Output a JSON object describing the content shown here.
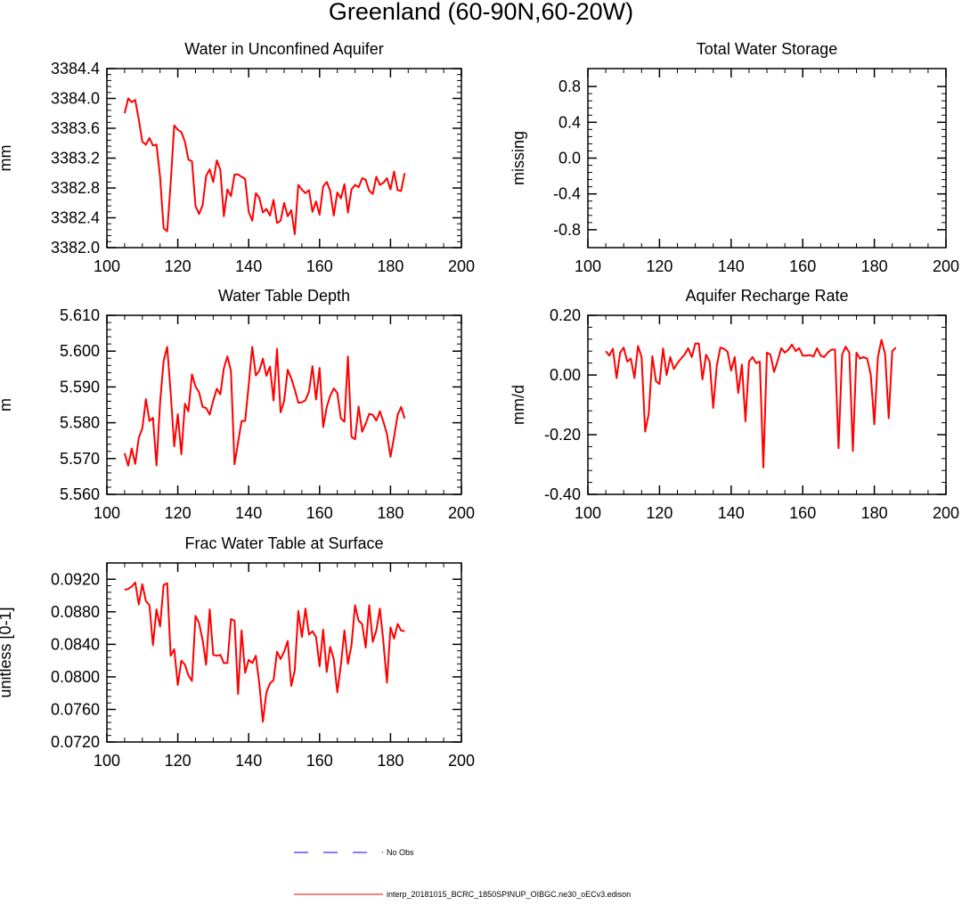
{
  "title": "Greenland (60-90N,60-20W)",
  "legend": {
    "entries": [
      {
        "label": "No Obs",
        "color": "#0000ff",
        "style": "dashed"
      },
      {
        "label": "interp_20181015_BCRC_1850SPINUP_OIBGC.ne30_oECv3.edison",
        "color": "#ff0000",
        "style": "solid"
      }
    ]
  },
  "chart_data": [
    {
      "type": "line",
      "title": "Water in Unconfined Aquifer",
      "xlabel": "",
      "ylabel": "mm",
      "xlim": [
        100,
        200
      ],
      "ylim": [
        3382.0,
        3384.4
      ],
      "xticks": [
        100,
        120,
        140,
        160,
        180,
        200
      ],
      "yticks": [
        3382.0,
        3382.4,
        3382.8,
        3383.2,
        3383.6,
        3384.0,
        3384.4
      ],
      "ytick_labels": [
        "3382.0",
        "3382.4",
        "3382.8",
        "3383.2",
        "3383.6",
        "3384.0",
        "3384.4"
      ],
      "series": [
        {
          "name": "interp_20181015_BCRC_1850SPINUP_OIBGC.ne30_oECv3.edison",
          "color": "#ff0000",
          "x_start": 105,
          "x_step": 1,
          "values": [
            3383.8,
            3384.0,
            3383.95,
            3383.98,
            3383.72,
            3383.42,
            3383.38,
            3383.47,
            3383.37,
            3383.38,
            3382.95,
            3382.26,
            3382.22,
            3382.86,
            3383.64,
            3383.58,
            3383.55,
            3383.42,
            3383.18,
            3383.16,
            3382.56,
            3382.45,
            3382.57,
            3382.96,
            3383.05,
            3382.88,
            3383.17,
            3383.04,
            3382.42,
            3382.78,
            3382.69,
            3382.98,
            3382.98,
            3382.95,
            3382.92,
            3382.48,
            3382.36,
            3382.73,
            3382.67,
            3382.47,
            3382.52,
            3382.43,
            3382.64,
            3382.33,
            3382.36,
            3382.6,
            3382.42,
            3382.5,
            3382.18,
            3382.84,
            3382.78,
            3382.73,
            3382.77,
            3382.48,
            3382.62,
            3382.44,
            3382.82,
            3382.88,
            3382.76,
            3382.43,
            3382.74,
            3382.66,
            3382.85,
            3382.47,
            3382.78,
            3382.84,
            3382.81,
            3382.93,
            3382.91,
            3382.76,
            3382.72,
            3382.95,
            3382.84,
            3382.87,
            3382.93,
            3382.78,
            3383.02,
            3382.77,
            3382.76,
            3383.0
          ]
        }
      ]
    },
    {
      "type": "line",
      "title": "Total Water Storage",
      "xlabel": "",
      "ylabel": "missing",
      "xlim": [
        100,
        200
      ],
      "ylim": [
        -1.0,
        1.0
      ],
      "xticks": [
        100,
        120,
        140,
        160,
        180,
        200
      ],
      "yticks": [
        -0.8,
        -0.4,
        0.0,
        0.4,
        0.8
      ],
      "ytick_labels": [
        "-0.8",
        "-0.4",
        "0.0",
        "0.4",
        "0.8"
      ],
      "series": []
    },
    {
      "type": "line",
      "title": "Water Table Depth",
      "xlabel": "",
      "ylabel": "m",
      "xlim": [
        100,
        200
      ],
      "ylim": [
        5.56,
        5.61
      ],
      "xticks": [
        100,
        120,
        140,
        160,
        180,
        200
      ],
      "yticks": [
        5.56,
        5.57,
        5.58,
        5.59,
        5.6,
        5.61
      ],
      "ytick_labels": [
        "5.560",
        "5.570",
        "5.580",
        "5.590",
        "5.600",
        "5.610"
      ],
      "series": [
        {
          "name": "interp_20181015_BCRC_1850SPINUP_OIBGC.ne30_oECv3.edison",
          "color": "#ff0000",
          "x_start": 105,
          "x_step": 1,
          "values": [
            5.5715,
            5.568,
            5.5728,
            5.5685,
            5.5758,
            5.5784,
            5.5866,
            5.5805,
            5.5814,
            5.5681,
            5.5855,
            5.5973,
            5.6012,
            5.5884,
            5.5734,
            5.5824,
            5.5712,
            5.5853,
            5.5832,
            5.5935,
            5.5901,
            5.5885,
            5.5844,
            5.5841,
            5.5823,
            5.5862,
            5.5895,
            5.5879,
            5.5952,
            5.5985,
            5.5944,
            5.5684,
            5.5745,
            5.5805,
            5.5805,
            5.5905,
            5.6012,
            5.5932,
            5.5945,
            5.5979,
            5.5931,
            5.5957,
            5.5862,
            5.6006,
            5.5829,
            5.5861,
            5.5948,
            5.5924,
            5.5893,
            5.5856,
            5.5857,
            5.5863,
            5.5887,
            5.5958,
            5.5865,
            5.5953,
            5.5788,
            5.5844,
            5.5875,
            5.5896,
            5.5883,
            5.5812,
            5.5803,
            5.5985,
            5.5761,
            5.5754,
            5.5845,
            5.5775,
            5.5797,
            5.5825,
            5.5822,
            5.5806,
            5.5832,
            5.5803,
            5.5769,
            5.5705,
            5.576,
            5.5822,
            5.5844,
            5.5812
          ]
        }
      ]
    },
    {
      "type": "line",
      "title": "Aquifer Recharge Rate",
      "xlabel": "",
      "ylabel": "mm/d",
      "xlim": [
        100,
        200
      ],
      "ylim": [
        -0.4,
        0.2
      ],
      "xticks": [
        100,
        120,
        140,
        160,
        180,
        200
      ],
      "yticks": [
        -0.4,
        -0.2,
        0.0,
        0.2
      ],
      "ytick_labels": [
        "-0.40",
        "-0.20",
        "0.00",
        "0.20"
      ],
      "series": [
        {
          "name": "interp_20181015_BCRC_1850SPINUP_OIBGC.ne30_oECv3.edison",
          "color": "#ff0000",
          "x_start": 105,
          "x_step": 1,
          "values": [
            0.08,
            0.065,
            0.088,
            -0.01,
            0.075,
            0.092,
            0.045,
            0.055,
            -0.01,
            0.097,
            0.06,
            -0.19,
            -0.13,
            0.063,
            -0.02,
            -0.03,
            0.089,
            0.0,
            0.06,
            0.02,
            0.04,
            0.055,
            0.068,
            0.09,
            0.06,
            0.105,
            0.105,
            -0.015,
            0.068,
            0.045,
            -0.11,
            0.03,
            0.092,
            0.088,
            0.078,
            0.015,
            0.06,
            -0.06,
            0.035,
            -0.155,
            0.045,
            0.06,
            0.04,
            0.045,
            -0.31,
            0.075,
            0.068,
            0.01,
            0.048,
            0.09,
            0.075,
            0.085,
            0.102,
            0.08,
            0.09,
            0.065,
            0.065,
            0.067,
            0.062,
            0.09,
            0.065,
            0.06,
            0.075,
            0.085,
            0.085,
            -0.245,
            0.068,
            0.095,
            0.075,
            -0.255,
            0.075,
            0.055,
            0.06,
            0.055,
            0.0,
            -0.165,
            0.06,
            0.118,
            0.07,
            -0.145,
            0.08,
            0.092
          ]
        }
      ]
    },
    {
      "type": "line",
      "title": "Frac Water Table at Surface",
      "xlabel": "",
      "ylabel": "unitless [0-1]",
      "xlim": [
        100,
        200
      ],
      "ylim": [
        0.072,
        0.094
      ],
      "xticks": [
        100,
        120,
        140,
        160,
        180,
        200
      ],
      "yticks": [
        0.072,
        0.076,
        0.08,
        0.084,
        0.088,
        0.092
      ],
      "ytick_labels": [
        "0.0720",
        "0.0760",
        "0.0800",
        "0.0840",
        "0.0880",
        "0.0920"
      ],
      "series": [
        {
          "name": "interp_20181015_BCRC_1850SPINUP_OIBGC.ne30_oECv3.edison",
          "color": "#ff0000",
          "x_start": 105,
          "x_step": 1,
          "values": [
            0.0907,
            0.0908,
            0.0911,
            0.0916,
            0.0889,
            0.0914,
            0.0893,
            0.0888,
            0.0839,
            0.0883,
            0.0862,
            0.0913,
            0.0915,
            0.0826,
            0.0834,
            0.079,
            0.082,
            0.0815,
            0.0802,
            0.0795,
            0.0875,
            0.0866,
            0.0845,
            0.0815,
            0.0883,
            0.0827,
            0.0826,
            0.0827,
            0.0817,
            0.0817,
            0.0871,
            0.0869,
            0.0779,
            0.0857,
            0.0805,
            0.0821,
            0.0817,
            0.0826,
            0.0792,
            0.0745,
            0.0781,
            0.0792,
            0.0796,
            0.0831,
            0.0822,
            0.0831,
            0.0844,
            0.0789,
            0.0808,
            0.0881,
            0.0849,
            0.0884,
            0.0852,
            0.0856,
            0.0849,
            0.0813,
            0.0858,
            0.0806,
            0.0837,
            0.0822,
            0.0781,
            0.0815,
            0.0857,
            0.0816,
            0.0839,
            0.0888,
            0.0869,
            0.0865,
            0.0836,
            0.0888,
            0.0843,
            0.0857,
            0.0884,
            0.0843,
            0.0793,
            0.0861,
            0.0847,
            0.0865,
            0.0857,
            0.0856
          ]
        }
      ]
    }
  ]
}
